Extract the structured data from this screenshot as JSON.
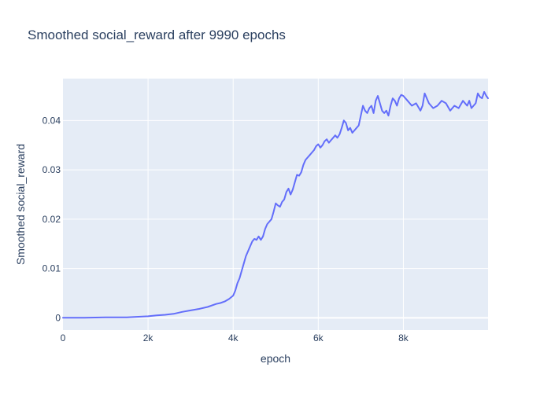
{
  "chart_data": {
    "type": "line",
    "title": "Smoothed social_reward after 9990 epochs",
    "xlabel": "epoch",
    "ylabel": "Smoothed social_reward",
    "xlim": [
      0,
      9990
    ],
    "ylim": [
      -0.0025,
      0.0485
    ],
    "x_ticks": [
      0,
      2000,
      4000,
      6000,
      8000
    ],
    "x_tick_labels": [
      "0",
      "2k",
      "4k",
      "6k",
      "8k"
    ],
    "y_ticks": [
      0,
      0.01,
      0.02,
      0.03,
      0.04
    ],
    "y_tick_labels": [
      "0",
      "0.01",
      "0.02",
      "0.03",
      "0.04"
    ],
    "grid": true,
    "legend": "none",
    "colors": {
      "line": "#636efa",
      "plot_bg": "#e5ecf6",
      "grid": "#ffffff",
      "text": "#2a3f5f"
    },
    "series": [
      {
        "x": [
          0,
          500,
          1000,
          1500,
          2000,
          2200,
          2400,
          2600,
          2800,
          3000,
          3200,
          3400,
          3600,
          3700,
          3800,
          3900,
          4000,
          4050,
          4100,
          4150,
          4200,
          4250,
          4300,
          4350,
          4400,
          4450,
          4500,
          4550,
          4600,
          4650,
          4700,
          4750,
          4800,
          4850,
          4900,
          4950,
          5000,
          5050,
          5100,
          5150,
          5200,
          5250,
          5300,
          5350,
          5400,
          5450,
          5500,
          5550,
          5600,
          5650,
          5700,
          5750,
          5800,
          5850,
          5900,
          5950,
          6000,
          6050,
          6100,
          6150,
          6200,
          6250,
          6300,
          6350,
          6400,
          6450,
          6500,
          6550,
          6600,
          6650,
          6700,
          6750,
          6800,
          6850,
          6900,
          6950,
          7000,
          7050,
          7100,
          7150,
          7200,
          7250,
          7300,
          7350,
          7400,
          7450,
          7500,
          7550,
          7600,
          7650,
          7700,
          7750,
          7800,
          7850,
          7900,
          7950,
          8000,
          8100,
          8200,
          8300,
          8400,
          8450,
          8500,
          8600,
          8700,
          8800,
          8900,
          9000,
          9100,
          9200,
          9300,
          9400,
          9500,
          9550,
          9600,
          9700,
          9750,
          9800,
          9850,
          9900,
          9950,
          9990
        ],
        "y": [
          0,
          0,
          0.0001,
          0.0001,
          0.0003,
          0.0005,
          0.0006,
          0.0008,
          0.0012,
          0.0015,
          0.0018,
          0.0022,
          0.0028,
          0.003,
          0.0033,
          0.0038,
          0.0045,
          0.0055,
          0.007,
          0.008,
          0.0095,
          0.011,
          0.0125,
          0.0135,
          0.0145,
          0.0155,
          0.016,
          0.0158,
          0.0165,
          0.0158,
          0.0165,
          0.018,
          0.019,
          0.0195,
          0.02,
          0.0215,
          0.0232,
          0.0228,
          0.0225,
          0.0235,
          0.024,
          0.0255,
          0.0262,
          0.025,
          0.026,
          0.0275,
          0.029,
          0.0288,
          0.0295,
          0.031,
          0.032,
          0.0325,
          0.033,
          0.0335,
          0.034,
          0.0348,
          0.0352,
          0.0345,
          0.035,
          0.0358,
          0.0362,
          0.0355,
          0.036,
          0.0365,
          0.037,
          0.0365,
          0.0372,
          0.0385,
          0.04,
          0.0395,
          0.038,
          0.0385,
          0.0375,
          0.038,
          0.0385,
          0.039,
          0.041,
          0.043,
          0.042,
          0.0415,
          0.0425,
          0.043,
          0.0415,
          0.044,
          0.045,
          0.0435,
          0.042,
          0.0415,
          0.042,
          0.041,
          0.043,
          0.0445,
          0.044,
          0.043,
          0.0445,
          0.0452,
          0.045,
          0.044,
          0.043,
          0.0435,
          0.042,
          0.043,
          0.0455,
          0.0435,
          0.0425,
          0.043,
          0.044,
          0.0435,
          0.042,
          0.043,
          0.0425,
          0.044,
          0.043,
          0.044,
          0.0425,
          0.0435,
          0.0455,
          0.0448,
          0.0445,
          0.0458,
          0.045,
          0.0445
        ]
      }
    ]
  }
}
